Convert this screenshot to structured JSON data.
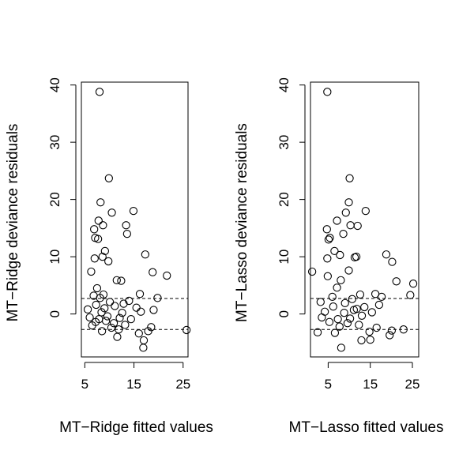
{
  "chart_data": [
    {
      "type": "scatter",
      "xlabel": "MT−Ridge fitted values",
      "ylabel": "MT−Ridge deviance residuals",
      "xlim": [
        4.3,
        26
      ],
      "ylim": [
        -7.5,
        40.5
      ],
      "xticks": [
        5,
        15,
        25
      ],
      "yticks": [
        0,
        10,
        20,
        30,
        40
      ],
      "reference_lines": [
        2.7,
        -2.7
      ],
      "points": [
        [
          8.0,
          38.8
        ],
        [
          9.9,
          23.7
        ],
        [
          8.2,
          19.5
        ],
        [
          10.5,
          17.7
        ],
        [
          14.9,
          18.0
        ],
        [
          7.8,
          16.3
        ],
        [
          6.9,
          14.8
        ],
        [
          8.7,
          15.5
        ],
        [
          13.4,
          15.5
        ],
        [
          13.6,
          14.0
        ],
        [
          7.7,
          13.1
        ],
        [
          7.1,
          13.3
        ],
        [
          9.1,
          11.0
        ],
        [
          8.6,
          10.0
        ],
        [
          17.3,
          10.4
        ],
        [
          7.0,
          9.7
        ],
        [
          9.8,
          9.2
        ],
        [
          6.3,
          7.4
        ],
        [
          18.8,
          7.3
        ],
        [
          21.7,
          6.7
        ],
        [
          11.5,
          5.9
        ],
        [
          12.4,
          5.8
        ],
        [
          16.2,
          3.5
        ],
        [
          7.5,
          4.5
        ],
        [
          19.8,
          2.8
        ],
        [
          8.8,
          3.4
        ],
        [
          10.1,
          2.1
        ],
        [
          11.1,
          1.4
        ],
        [
          12.9,
          1.8
        ],
        [
          14.0,
          2.3
        ],
        [
          15.5,
          1.1
        ],
        [
          16.4,
          0.4
        ],
        [
          19.0,
          0.7
        ],
        [
          5.6,
          0.8
        ],
        [
          6.0,
          -0.6
        ],
        [
          7.3,
          1.6
        ],
        [
          9.3,
          -1.2
        ],
        [
          10.4,
          -2.4
        ],
        [
          12.1,
          -0.7
        ],
        [
          13.2,
          -1.9
        ],
        [
          16.0,
          -3.4
        ],
        [
          17.0,
          -4.6
        ],
        [
          17.9,
          -3.0
        ],
        [
          18.5,
          -2.3
        ],
        [
          25.7,
          -2.8
        ],
        [
          16.9,
          -5.9
        ],
        [
          8.5,
          -3.0
        ],
        [
          11.6,
          -4.0
        ],
        [
          6.5,
          -2.0
        ],
        [
          7.9,
          -0.9
        ],
        [
          8.4,
          0.3
        ],
        [
          9.0,
          1.0
        ],
        [
          9.6,
          -0.4
        ],
        [
          10.9,
          -1.6
        ],
        [
          12.6,
          0.2
        ],
        [
          14.4,
          -0.9
        ],
        [
          7.2,
          -1.4
        ],
        [
          8.1,
          2.8
        ],
        [
          6.8,
          3.2
        ],
        [
          11.9,
          -2.7
        ]
      ]
    },
    {
      "type": "scatter",
      "xlabel": "MT−Lasso fitted values",
      "ylabel": "MT−Lasso deviance residuals",
      "xlim": [
        0.8,
        26.5
      ],
      "ylim": [
        -7.5,
        40.5
      ],
      "xticks": [
        5,
        15,
        25
      ],
      "yticks": [
        0,
        10,
        20,
        30,
        40
      ],
      "reference_lines": [
        2.7,
        -2.7
      ],
      "points": [
        [
          4.8,
          38.8
        ],
        [
          10.1,
          23.7
        ],
        [
          9.9,
          19.5
        ],
        [
          13.9,
          18.0
        ],
        [
          9.2,
          17.7
        ],
        [
          7.1,
          16.3
        ],
        [
          10.3,
          15.5
        ],
        [
          4.7,
          14.8
        ],
        [
          8.6,
          14.0
        ],
        [
          5.4,
          13.3
        ],
        [
          5.1,
          13.0
        ],
        [
          12.0,
          15.4
        ],
        [
          6.5,
          11.0
        ],
        [
          7.8,
          10.3
        ],
        [
          11.3,
          9.9
        ],
        [
          11.7,
          10.0
        ],
        [
          4.8,
          9.7
        ],
        [
          18.8,
          10.4
        ],
        [
          20.2,
          9.1
        ],
        [
          1.2,
          7.4
        ],
        [
          9.9,
          7.6
        ],
        [
          8.0,
          5.9
        ],
        [
          21.2,
          5.7
        ],
        [
          25.2,
          5.3
        ],
        [
          4.9,
          6.6
        ],
        [
          7.1,
          4.6
        ],
        [
          12.6,
          3.4
        ],
        [
          16.2,
          3.5
        ],
        [
          17.7,
          3.0
        ],
        [
          24.5,
          3.3
        ],
        [
          3.2,
          2.1
        ],
        [
          6.2,
          1.3
        ],
        [
          9.0,
          1.9
        ],
        [
          11.1,
          0.7
        ],
        [
          13.6,
          1.2
        ],
        [
          15.4,
          0.3
        ],
        [
          3.5,
          -0.6
        ],
        [
          5.3,
          -1.4
        ],
        [
          7.7,
          -2.2
        ],
        [
          10.2,
          -0.8
        ],
        [
          12.3,
          -1.9
        ],
        [
          14.8,
          -3.1
        ],
        [
          16.5,
          -2.4
        ],
        [
          19.6,
          -3.7
        ],
        [
          20.1,
          -2.9
        ],
        [
          22.9,
          -2.7
        ],
        [
          8.1,
          -5.9
        ],
        [
          12.9,
          -4.6
        ],
        [
          15.0,
          -4.5
        ],
        [
          6.6,
          -3.3
        ],
        [
          4.2,
          0.4
        ],
        [
          7.3,
          -0.9
        ],
        [
          8.8,
          0.2
        ],
        [
          9.6,
          -1.6
        ],
        [
          11.8,
          0.9
        ],
        [
          6.0,
          3.0
        ],
        [
          10.7,
          2.6
        ],
        [
          13.0,
          -0.3
        ],
        [
          2.5,
          -3.2
        ],
        [
          17.1,
          1.6
        ]
      ]
    }
  ]
}
